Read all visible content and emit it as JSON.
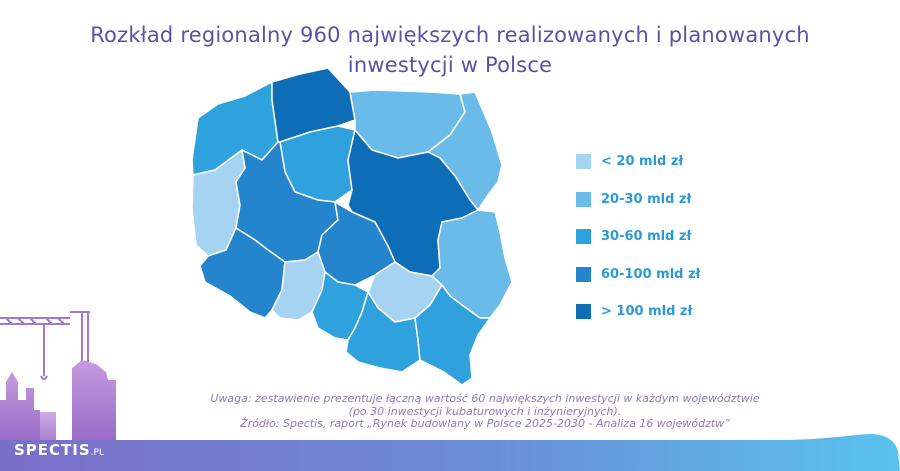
{
  "title": {
    "line1": "Rozkład regionalny 960 największych realizowanych i planowanych",
    "line2": "inwestycji w Polsce"
  },
  "legend": [
    {
      "label": "< 20 mld zł",
      "color": "#a7d3f2"
    },
    {
      "label": "20-30 mld zł",
      "color": "#6bbbea"
    },
    {
      "label": "30-60 mld zł",
      "color": "#2fa1dd"
    },
    {
      "label": "60-100 mld zł",
      "color": "#2585cc"
    },
    {
      "label": "> 100 mld zł",
      "color": "#0d6db7"
    }
  ],
  "note": {
    "line1": "Uwaga: zestawienie prezentuje łączną wartość 60 największych inwestycji w każdym województwie",
    "line2": "(po 30 inwestycji kubaturowych i inżynieryjnych).",
    "line3": "Źródło: Spectis, raport „Rynek budowlany w Polsce 2025-2030 - Analiza 16 województw”"
  },
  "brand": {
    "name": "SPECTIS",
    "suffix": ".PL"
  }
}
